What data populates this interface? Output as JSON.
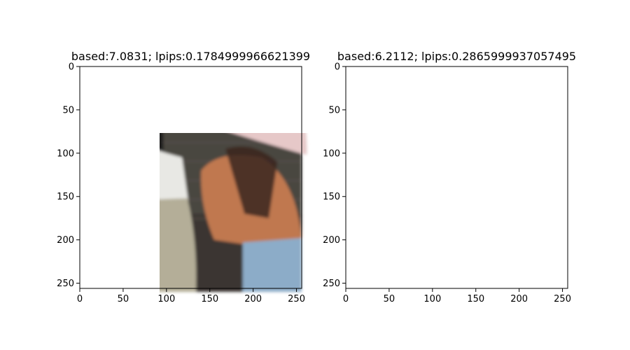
{
  "chart_data": [
    {
      "type": "image",
      "title": "based:7.0831; lpips:0.1784999966621399",
      "xlabel": "",
      "ylabel": "",
      "xlim": [
        0,
        256
      ],
      "ylim": [
        256,
        0
      ],
      "xticks": [
        0,
        50,
        100,
        150,
        200,
        250
      ],
      "yticks": [
        0,
        50,
        100,
        150,
        200,
        250
      ],
      "grid": false,
      "image": {
        "description_colors": {
          "background_wall": "#4a4640",
          "umbrella": "#e6c8c8",
          "hair": "#1e1a1a",
          "white_top": "#e8e8e4",
          "beige_pants": "#b4ae98",
          "orange_shirt": "#c07850",
          "blue_jeans": "#8cacc8"
        }
      }
    },
    {
      "type": "image",
      "title": "based:6.2112; lpips:0.2865999937057495",
      "xlabel": "",
      "ylabel": "",
      "xlim": [
        0,
        256
      ],
      "ylim": [
        256,
        0
      ],
      "xticks": [
        0,
        50,
        100,
        150,
        200,
        250
      ],
      "yticks": [
        0,
        50,
        100,
        150,
        200,
        250
      ],
      "grid": false,
      "image": {
        "description_colors": {
          "background_wall": "#48443e",
          "umbrella": "#e4cccc",
          "hair": "#201c1c",
          "white_top": "#dcdcd8",
          "beige_pants": "#aca890",
          "orange_shirt": "#b87858",
          "blue_jeans": "#88a8c4"
        }
      }
    }
  ]
}
